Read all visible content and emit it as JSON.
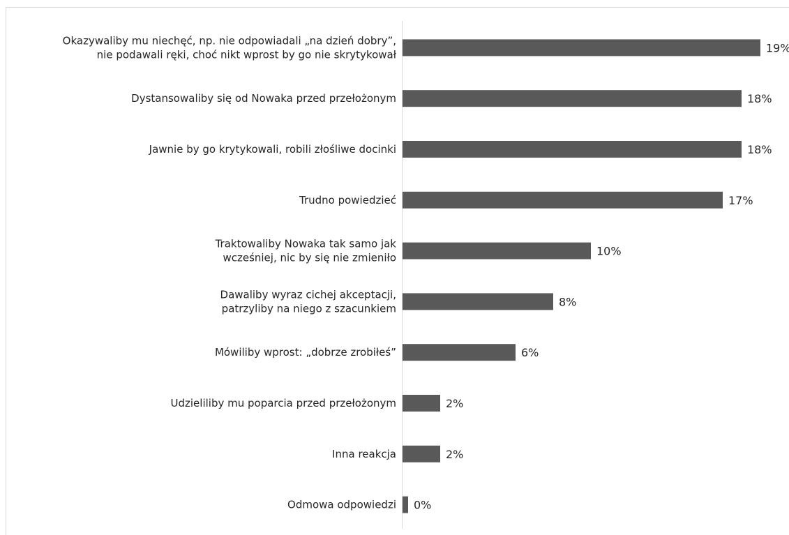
{
  "chart_data": {
    "type": "bar",
    "orientation": "horizontal",
    "title": "",
    "xlabel": "",
    "ylabel": "",
    "categories": [
      [
        "Okazywaliby mu niechęć, np. nie odpowiadali „na dzień dobry”,",
        "nie podawali ręki,  choć nikt wprost by go nie skrytykował"
      ],
      [
        "Dystansowaliby się od Nowaka przed przełożonym"
      ],
      [
        "Jawnie by go krytykowali, robili złośliwe docinki"
      ],
      [
        "Trudno powiedzieć"
      ],
      [
        "Traktowaliby Nowaka tak samo jak",
        "wcześniej, nic by się nie zmieniło"
      ],
      [
        "Dawaliby wyraz cichej akceptacji,",
        "patrzyliby na niego z szacunkiem"
      ],
      [
        "Mówiliby wprost: „dobrze zrobiłeś”"
      ],
      [
        "Udzieliliby mu poparcia przed przełożonym"
      ],
      [
        "Inna reakcja"
      ],
      [
        "Odmowa odpowiedzi"
      ]
    ],
    "values": [
      19,
      18,
      18,
      17,
      10,
      8,
      6,
      2,
      2,
      0
    ],
    "value_labels": [
      "19%",
      "18%",
      "18%",
      "17%",
      "10%",
      "8%",
      "6%",
      "2%",
      "2%",
      "0%"
    ],
    "bar_color": "#595959",
    "axis_color": "#d9d9d9",
    "grid": false,
    "legend": "none"
  }
}
